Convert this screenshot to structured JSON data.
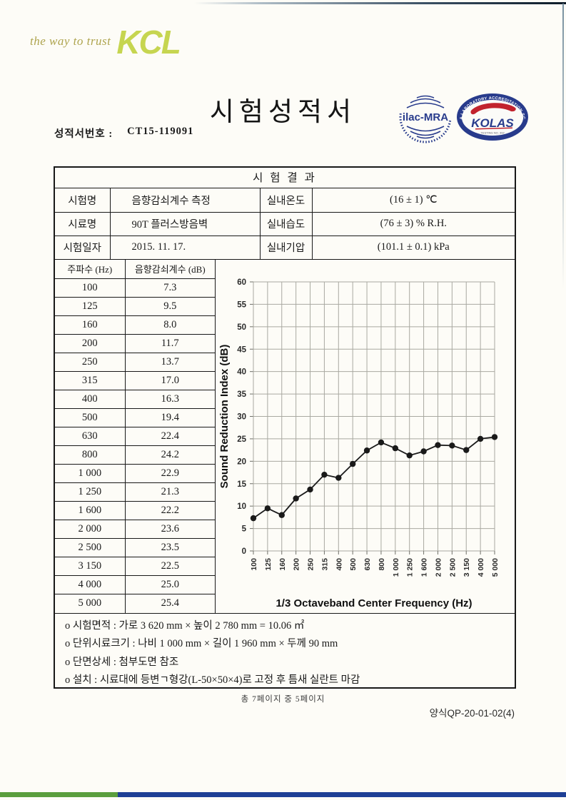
{
  "brand": {
    "tagline": "the way to trust",
    "logo": "KCL"
  },
  "title": "시험성적서",
  "report_no_label": "성적서번호 :",
  "report_no": "CT15-119091",
  "seals": {
    "ilac_label": "ilac-MRA",
    "kolas_label": "KOLAS",
    "kolas_ring_text": "KOREA LABORATORY ACCREDITATION SCHEME",
    "kolas_sub_text": "TESTING NO. 392"
  },
  "results_header": "시 험 결 과",
  "info_table": {
    "rows": [
      {
        "label1": "시험명",
        "value1": "음향감쇠계수 측정",
        "label2": "실내온도",
        "value2": "(16 ± 1) ℃"
      },
      {
        "label1": "시료명",
        "value1": "90T 플러스방음벽",
        "label2": "실내습도",
        "value2": "(76 ± 3) % R.H."
      },
      {
        "label1": "시험일자",
        "value1": "2015. 11. 17.",
        "label2": "실내기압",
        "value2": "(101.1 ± 0.1) kPa"
      }
    ]
  },
  "freq_table": {
    "col1": "주파수 (Hz)",
    "col2": "음향감쇠계수 (dB)",
    "rows": [
      [
        "100",
        "7.3"
      ],
      [
        "125",
        "9.5"
      ],
      [
        "160",
        "8.0"
      ],
      [
        "200",
        "11.7"
      ],
      [
        "250",
        "13.7"
      ],
      [
        "315",
        "17.0"
      ],
      [
        "400",
        "16.3"
      ],
      [
        "500",
        "19.4"
      ],
      [
        "630",
        "22.4"
      ],
      [
        "800",
        "24.2"
      ],
      [
        "1 000",
        "22.9"
      ],
      [
        "1 250",
        "21.3"
      ],
      [
        "1 600",
        "22.2"
      ],
      [
        "2 000",
        "23.6"
      ],
      [
        "2 500",
        "23.5"
      ],
      [
        "3 150",
        "22.5"
      ],
      [
        "4 000",
        "25.0"
      ],
      [
        "5 000",
        "25.4"
      ]
    ]
  },
  "chart_data": {
    "type": "line",
    "categories": [
      "100",
      "125",
      "160",
      "200",
      "250",
      "315",
      "400",
      "500",
      "630",
      "800",
      "1 000",
      "1 250",
      "1 600",
      "2 000",
      "2 500",
      "3 150",
      "4 000",
      "5 000"
    ],
    "values": [
      7.3,
      9.5,
      8.0,
      11.7,
      13.7,
      17.0,
      16.3,
      19.4,
      22.4,
      24.2,
      22.9,
      21.3,
      22.2,
      23.6,
      23.5,
      22.5,
      25.0,
      25.4
    ],
    "xlabel": "1/3 Octaveband Center Frequency (Hz)",
    "ylabel": "Sound Reduction Index (dB)",
    "ylim": [
      0,
      60
    ],
    "ytick_step": 5,
    "grid": true,
    "legend": "none",
    "marker": "circle",
    "line_color": "#1a1a1a"
  },
  "notes": [
    "o 시험면적 : 가로 3 620 mm × 높이 2 780 mm = 10.06 ㎡",
    "o 단위시료크기 : 나비 1 000 mm × 길이 1 960 mm × 두께 90 mm",
    "o 단면상세 : 첨부도면 참조",
    "o 설치 : 시료대에 등변ㄱ형강(L-50×50×4)로 고정 후 틈새 실란트 마감"
  ],
  "footer": {
    "page_info": "총 7페이지 중 5페이지",
    "form_no": "양식QP-20-01-02(4)"
  },
  "colors": {
    "bar_green": "#5a9e3c",
    "bar_navy": "#1e3f94",
    "seal_navy": "#283b8c",
    "seal_red": "#c2232e",
    "logo_green": "#c6d550",
    "logo_olive": "#aea44e"
  }
}
